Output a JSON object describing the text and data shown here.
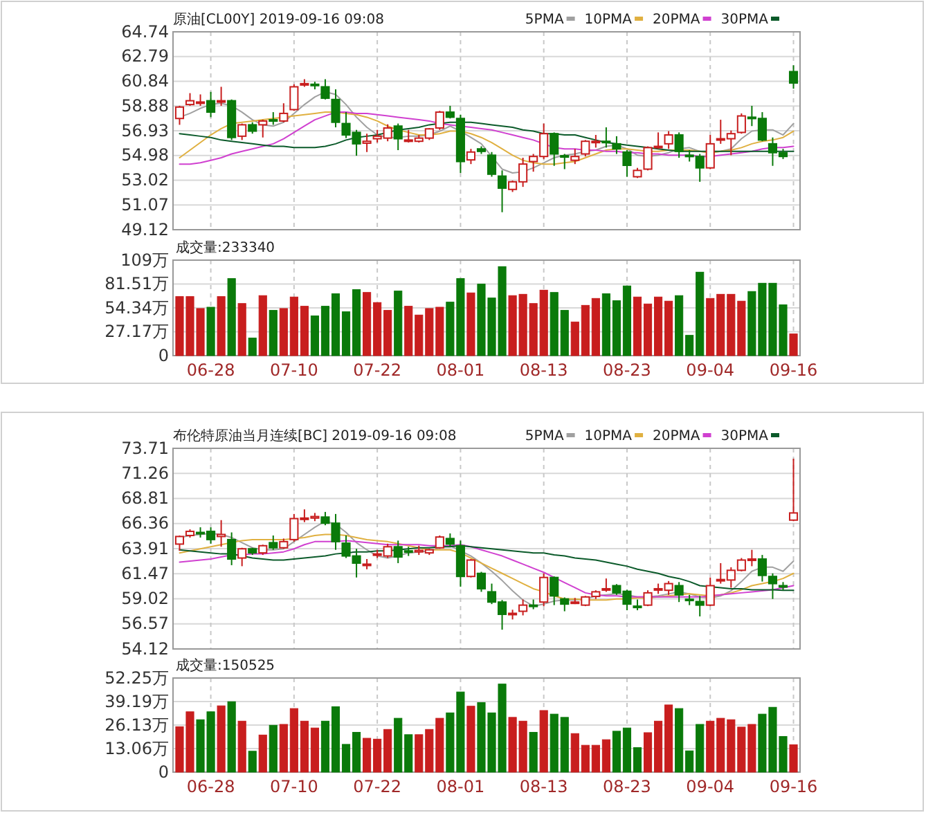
{
  "chart_data": [
    {
      "type": "candlestick",
      "title": "原油[CL00Y] 2019-09-16 09:08",
      "categories": [
        null,
        null,
        null,
        null,
        null,
        null,
        null,
        null,
        null,
        null,
        null,
        null,
        null,
        null,
        null,
        null,
        null,
        null,
        null,
        null,
        null,
        null,
        null,
        null,
        null,
        null,
        null,
        null,
        null,
        null,
        null,
        null,
        null,
        null,
        null,
        null,
        null,
        null,
        null,
        null,
        null,
        null,
        null,
        null,
        null,
        null,
        null,
        null,
        null,
        null,
        null,
        null,
        null,
        null,
        null,
        null,
        null,
        null,
        null,
        null
      ],
      "ohlc": [
        [
          57.9,
          58.9,
          57.4,
          58.8
        ],
        [
          59.0,
          59.9,
          58.9,
          59.3
        ],
        [
          59.1,
          59.8,
          58.9,
          59.2
        ],
        [
          59.3,
          60.0,
          58.0,
          58.4
        ],
        [
          59.2,
          60.4,
          58.9,
          59.3
        ],
        [
          59.3,
          59.4,
          56.2,
          56.4
        ],
        [
          56.5,
          57.5,
          56.2,
          57.4
        ],
        [
          57.4,
          57.6,
          56.7,
          56.9
        ],
        [
          57.4,
          57.8,
          56.4,
          57.7
        ],
        [
          57.8,
          58.4,
          57.4,
          57.7
        ],
        [
          57.7,
          59.1,
          57.6,
          58.3
        ],
        [
          58.6,
          60.6,
          58.5,
          60.4
        ],
        [
          60.55,
          61.0,
          60.4,
          60.65
        ],
        [
          60.6,
          60.8,
          60.2,
          60.5
        ],
        [
          60.4,
          61.0,
          59.4,
          59.5
        ],
        [
          59.4,
          60.2,
          57.2,
          57.6
        ],
        [
          57.5,
          58.4,
          56.35,
          56.6
        ],
        [
          56.8,
          57.0,
          54.96,
          55.9
        ],
        [
          55.95,
          56.7,
          55.25,
          56.1
        ],
        [
          56.3,
          57.0,
          56.0,
          56.5
        ],
        [
          56.35,
          57.44,
          56.1,
          57.15
        ],
        [
          57.3,
          57.5,
          55.4,
          56.3
        ],
        [
          56.1,
          57.0,
          56.0,
          56.2
        ],
        [
          56.1,
          56.6,
          56.0,
          56.35
        ],
        [
          56.35,
          57.15,
          56.2,
          57.08
        ],
        [
          57.15,
          58.5,
          57.0,
          58.4
        ],
        [
          58.4,
          58.9,
          57.9,
          58.0
        ],
        [
          57.9,
          58.2,
          53.6,
          54.5
        ],
        [
          54.63,
          55.5,
          54.3,
          55.25
        ],
        [
          55.5,
          55.7,
          55.1,
          55.3
        ],
        [
          55.0,
          55.25,
          53.3,
          53.5
        ],
        [
          53.35,
          53.8,
          50.5,
          52.4
        ],
        [
          52.3,
          53.0,
          52.1,
          52.9
        ],
        [
          52.9,
          54.8,
          52.5,
          54.3
        ],
        [
          54.5,
          55.1,
          53.7,
          54.9
        ],
        [
          54.9,
          57.5,
          54.7,
          56.7
        ],
        [
          56.7,
          56.8,
          54.16,
          55.1
        ],
        [
          54.96,
          55.1,
          53.9,
          54.85
        ],
        [
          54.6,
          55.5,
          54.3,
          54.9
        ],
        [
          55.1,
          56.2,
          54.9,
          56.1
        ],
        [
          56.0,
          56.6,
          55.6,
          56.1
        ],
        [
          56.1,
          57.2,
          55.6,
          56.0
        ],
        [
          55.9,
          56.5,
          55.1,
          55.5
        ],
        [
          55.25,
          55.4,
          53.3,
          54.2
        ],
        [
          53.3,
          54.0,
          53.2,
          53.8
        ],
        [
          53.9,
          55.7,
          53.8,
          55.6
        ],
        [
          55.6,
          56.8,
          55.5,
          55.7
        ],
        [
          55.9,
          56.9,
          55.5,
          56.6
        ],
        [
          56.6,
          56.8,
          54.8,
          55.3
        ],
        [
          55.0,
          55.4,
          54.5,
          54.95
        ],
        [
          54.9,
          55.1,
          52.9,
          54.0
        ],
        [
          54.0,
          56.6,
          53.9,
          55.9
        ],
        [
          56.2,
          57.8,
          55.9,
          56.3
        ],
        [
          56.3,
          56.95,
          55.0,
          56.7
        ],
        [
          56.8,
          58.3,
          56.7,
          58.1
        ],
        [
          58.0,
          58.9,
          57.3,
          57.95
        ],
        [
          57.9,
          58.4,
          56.1,
          56.2
        ],
        [
          55.9,
          56.4,
          54.16,
          55.2
        ],
        [
          55.2,
          55.5,
          54.7,
          54.9
        ],
        [
          61.6,
          62.1,
          60.25,
          60.7
        ]
      ],
      "series": [
        {
          "type": "line",
          "name": "5PMA",
          "color": "#a0a0a0",
          "values": [
            58.0,
            58.3,
            58.7,
            59.0,
            59.1,
            58.9,
            58.4,
            57.8,
            57.4,
            57.3,
            57.6,
            58.3,
            59.0,
            59.6,
            60.0,
            59.8,
            59.0,
            58.0,
            57.2,
            56.6,
            56.4,
            56.4,
            56.5,
            56.5,
            56.6,
            56.9,
            57.3,
            56.9,
            56.4,
            55.9,
            54.9,
            53.9,
            53.6,
            53.7,
            54.0,
            54.4,
            54.8,
            55.0,
            55.1,
            55.3,
            55.4,
            55.7,
            55.8,
            55.5,
            55.0,
            54.9,
            55.0,
            55.2,
            55.5,
            55.6,
            55.3,
            55.2,
            55.3,
            55.5,
            56.3,
            56.9,
            57.0,
            57.0,
            56.6,
            57.5
          ]
        },
        {
          "type": "line",
          "name": "10PMA",
          "color": "#e0b040",
          "values": [
            54.8,
            55.4,
            56.0,
            56.6,
            57.1,
            57.5,
            57.6,
            57.7,
            57.8,
            57.9,
            58.0,
            58.1,
            58.2,
            58.3,
            58.4,
            58.4,
            58.3,
            58.2,
            58.0,
            57.7,
            57.3,
            57.0,
            56.8,
            56.6,
            56.6,
            56.7,
            56.9,
            56.9,
            56.7,
            56.4,
            56.0,
            55.5,
            55.0,
            54.6,
            54.4,
            54.3,
            54.3,
            54.4,
            54.5,
            54.8,
            55.1,
            55.4,
            55.5,
            55.5,
            55.4,
            55.3,
            55.3,
            55.4,
            55.4,
            55.4,
            55.3,
            55.2,
            55.3,
            55.4,
            55.6,
            55.9,
            56.1,
            56.2,
            56.4,
            56.9
          ]
        },
        {
          "type": "line",
          "name": "20PMA",
          "color": "#d040d0",
          "values": [
            54.3,
            54.3,
            54.4,
            54.6,
            54.8,
            55.1,
            55.3,
            55.5,
            55.7,
            55.9,
            56.3,
            56.8,
            57.3,
            57.8,
            58.1,
            58.4,
            58.4,
            58.3,
            58.3,
            58.2,
            58.1,
            58.0,
            57.9,
            57.8,
            57.7,
            57.5,
            57.4,
            57.3,
            57.2,
            57.1,
            57.0,
            56.8,
            56.6,
            56.4,
            56.2,
            55.9,
            55.6,
            55.5,
            55.5,
            55.4,
            55.4,
            55.3,
            55.3,
            55.2,
            55.2,
            55.1,
            55.1,
            55.0,
            55.0,
            55.0,
            54.9,
            54.9,
            55.0,
            55.1,
            55.2,
            55.3,
            55.5,
            55.6,
            55.6,
            55.7
          ]
        },
        {
          "type": "line",
          "name": "30PMA",
          "color": "#0b5a2a",
          "values": [
            56.7,
            56.6,
            56.5,
            56.4,
            56.2,
            56.1,
            56.0,
            55.9,
            55.8,
            55.7,
            55.7,
            55.6,
            55.6,
            55.6,
            55.7,
            55.9,
            56.2,
            56.4,
            56.5,
            56.6,
            56.8,
            57.0,
            57.1,
            57.2,
            57.4,
            57.5,
            57.6,
            57.6,
            57.6,
            57.5,
            57.4,
            57.3,
            57.2,
            57.0,
            56.9,
            56.7,
            56.7,
            56.6,
            56.6,
            56.4,
            56.2,
            56.0,
            55.9,
            55.8,
            55.7,
            55.6,
            55.5,
            55.4,
            55.3,
            55.3,
            55.3,
            55.3,
            55.3,
            55.3,
            55.3,
            55.3,
            55.3,
            55.3,
            55.3,
            55.3
          ]
        }
      ],
      "ylim": [
        49.12,
        64.74
      ],
      "yticks": [
        49.12,
        51.07,
        53.02,
        54.98,
        56.93,
        58.88,
        60.84,
        62.79,
        64.74
      ],
      "grid": true,
      "legend": "top right",
      "tick_labels": "y"
    },
    {
      "type": "bar",
      "title": "成交量:233340",
      "categories": [
        null,
        null,
        null,
        "06-28",
        null,
        null,
        null,
        null,
        null,
        null,
        null,
        "07-10",
        null,
        null,
        null,
        null,
        null,
        null,
        null,
        "07-22",
        null,
        null,
        null,
        null,
        null,
        null,
        null,
        "08-01",
        null,
        null,
        null,
        null,
        null,
        null,
        null,
        "08-13",
        null,
        null,
        null,
        null,
        null,
        null,
        null,
        "08-23",
        null,
        null,
        null,
        null,
        null,
        null,
        null,
        "09-04",
        null,
        null,
        null,
        null,
        null,
        null,
        null,
        "09-16"
      ],
      "values": [
        67.2,
        67.2,
        53.6,
        55.1,
        67.2,
        87.7,
        59.3,
        20.0,
        68.3,
        51.5,
        53.6,
        66.7,
        56.2,
        45.2,
        56.2,
        70.4,
        49.9,
        75.1,
        71.9,
        60.4,
        51.5,
        73.5,
        56.2,
        46.2,
        53.6,
        55.1,
        60.9,
        87.7,
        71.4,
        81.4,
        65.6,
        101.3,
        68.3,
        69.8,
        59.3,
        74.5,
        71.9,
        51.5,
        38.3,
        57.2,
        65.1,
        70.4,
        62.5,
        79.3,
        66.7,
        58.8,
        66.7,
        62.0,
        68.3,
        23.1,
        95.0,
        65.1,
        69.8,
        69.8,
        62.0,
        73.0,
        82.4,
        82.4,
        57.8,
        24.7
      ],
      "colors": [
        "#c81e1e",
        "#c81e1e",
        "#c81e1e",
        "#0a7a0a",
        "#c81e1e",
        "#0a7a0a",
        "#c81e1e",
        "#0a7a0a",
        "#c81e1e",
        "#0a7a0a",
        "#c81e1e",
        "#c81e1e",
        "#c81e1e",
        "#0a7a0a",
        "#0a7a0a",
        "#0a7a0a",
        "#0a7a0a",
        "#0a7a0a",
        "#c81e1e",
        "#c81e1e",
        "#c81e1e",
        "#0a7a0a",
        "#c81e1e",
        "#c81e1e",
        "#c81e1e",
        "#c81e1e",
        "#0a7a0a",
        "#0a7a0a",
        "#c81e1e",
        "#0a7a0a",
        "#0a7a0a",
        "#0a7a0a",
        "#c81e1e",
        "#c81e1e",
        "#c81e1e",
        "#c81e1e",
        "#0a7a0a",
        "#0a7a0a",
        "#c81e1e",
        "#c81e1e",
        "#c81e1e",
        "#0a7a0a",
        "#0a7a0a",
        "#0a7a0a",
        "#c81e1e",
        "#c81e1e",
        "#c81e1e",
        "#c81e1e",
        "#0a7a0a",
        "#0a7a0a",
        "#0a7a0a",
        "#c81e1e",
        "#c81e1e",
        "#c81e1e",
        "#c81e1e",
        "#0a7a0a",
        "#0a7a0a",
        "#0a7a0a",
        "#0a7a0a",
        "#c81e1e"
      ],
      "ylim": [
        0,
        108.68
      ],
      "yticks": [
        0,
        {
          "value": 27.17,
          "label": "27.17万"
        },
        {
          "value": 54.34,
          "label": "54.34万"
        },
        {
          "value": 81.51,
          "label": "81.51万"
        },
        {
          "value": 108.68,
          "label": "109万"
        }
      ],
      "grid": true
    },
    {
      "type": "candlestick",
      "title": "布伦特原油当月连续[BC] 2019-09-16 09:08",
      "categories": [
        null,
        null,
        null,
        null,
        null,
        null,
        null,
        null,
        null,
        null,
        null,
        null,
        null,
        null,
        null,
        null,
        null,
        null,
        null,
        null,
        null,
        null,
        null,
        null,
        null,
        null,
        null,
        null,
        null,
        null,
        null,
        null,
        null,
        null,
        null,
        null,
        null,
        null,
        null,
        null,
        null,
        null,
        null,
        null,
        null,
        null,
        null,
        null,
        null,
        null,
        null,
        null,
        null,
        null,
        null,
        null,
        null,
        null,
        null,
        null
      ],
      "ohlc": [
        [
          64.36,
          65.2,
          63.7,
          65.1
        ],
        [
          65.2,
          65.8,
          65.0,
          65.6
        ],
        [
          65.5,
          66.0,
          65.0,
          65.4
        ],
        [
          65.6,
          66.0,
          64.4,
          64.8
        ],
        [
          65.1,
          66.7,
          64.1,
          65.3
        ],
        [
          64.8,
          65.5,
          62.3,
          62.9
        ],
        [
          63.0,
          64.0,
          62.2,
          63.9
        ],
        [
          63.9,
          64.0,
          63.3,
          63.5
        ],
        [
          63.5,
          64.3,
          63.3,
          64.2
        ],
        [
          64.5,
          65.2,
          63.8,
          64.0
        ],
        [
          64.0,
          64.9,
          63.9,
          64.6
        ],
        [
          64.8,
          67.3,
          64.6,
          66.85
        ],
        [
          66.8,
          67.75,
          66.5,
          66.9
        ],
        [
          66.9,
          67.4,
          66.6,
          67.05
        ],
        [
          67.0,
          67.5,
          66.2,
          66.4
        ],
        [
          66.4,
          67.3,
          63.8,
          64.6
        ],
        [
          64.45,
          65.2,
          63.0,
          63.2
        ],
        [
          63.2,
          63.9,
          61.1,
          62.5
        ],
        [
          62.3,
          62.9,
          61.9,
          62.4
        ],
        [
          63.3,
          63.8,
          63.0,
          63.4
        ],
        [
          63.2,
          64.4,
          63.0,
          64.1
        ],
        [
          64.1,
          64.7,
          62.5,
          63.1
        ],
        [
          63.7,
          64.1,
          63.2,
          63.6
        ],
        [
          63.6,
          64.2,
          63.3,
          63.75
        ],
        [
          63.5,
          63.9,
          63.3,
          63.8
        ],
        [
          64.0,
          65.2,
          63.9,
          65.05
        ],
        [
          64.9,
          65.4,
          64.1,
          64.36
        ],
        [
          64.2,
          64.7,
          60.2,
          61.2
        ],
        [
          61.2,
          62.9,
          61.1,
          62.8
        ],
        [
          61.5,
          61.65,
          59.7,
          60.0
        ],
        [
          59.7,
          60.5,
          58.5,
          58.7
        ],
        [
          58.7,
          58.9,
          56.0,
          57.5
        ],
        [
          57.5,
          57.95,
          57.0,
          57.6
        ],
        [
          57.8,
          58.95,
          57.4,
          58.4
        ],
        [
          58.4,
          58.95,
          58.0,
          58.3
        ],
        [
          58.7,
          61.5,
          58.3,
          61.1
        ],
        [
          61.1,
          61.2,
          58.4,
          59.3
        ],
        [
          59.0,
          59.15,
          57.8,
          58.5
        ],
        [
          58.6,
          59.1,
          58.5,
          58.7
        ],
        [
          58.4,
          59.3,
          58.3,
          59.2
        ],
        [
          59.25,
          59.85,
          59.0,
          59.7
        ],
        [
          59.9,
          61.0,
          59.7,
          60.0
        ],
        [
          60.3,
          60.45,
          59.4,
          59.6
        ],
        [
          59.75,
          59.9,
          57.9,
          58.5
        ],
        [
          58.3,
          58.95,
          57.9,
          58.2
        ],
        [
          58.4,
          59.85,
          58.3,
          59.6
        ],
        [
          59.9,
          60.5,
          59.5,
          60.0
        ],
        [
          59.85,
          60.75,
          59.4,
          60.5
        ],
        [
          60.3,
          60.65,
          58.7,
          59.4
        ],
        [
          58.98,
          59.4,
          58.4,
          58.94
        ],
        [
          58.75,
          59.3,
          57.3,
          58.4
        ],
        [
          58.4,
          61.1,
          58.3,
          60.3
        ],
        [
          60.85,
          62.5,
          60.5,
          60.9
        ],
        [
          60.85,
          62.1,
          60.1,
          61.8
        ],
        [
          61.8,
          63.0,
          61.7,
          62.8
        ],
        [
          62.8,
          63.8,
          62.2,
          62.9
        ],
        [
          62.9,
          63.3,
          60.7,
          61.3
        ],
        [
          61.2,
          61.5,
          59.0,
          60.5
        ],
        [
          60.3,
          60.65,
          59.85,
          60.2
        ],
        [
          66.7,
          72.7,
          66.6,
          67.4
        ]
      ],
      "series": [
        {
          "type": "line",
          "name": "5PMA",
          "color": "#a0a0a0",
          "values": [
            65.0,
            65.2,
            65.3,
            65.4,
            65.3,
            65.0,
            64.5,
            64.0,
            63.8,
            63.8,
            63.9,
            64.6,
            65.3,
            66.0,
            66.6,
            66.3,
            65.5,
            64.5,
            63.8,
            63.2,
            63.0,
            63.2,
            63.5,
            63.6,
            63.7,
            64.0,
            64.2,
            63.7,
            63.2,
            62.5,
            61.7,
            60.8,
            59.8,
            58.9,
            58.3,
            58.5,
            58.8,
            58.9,
            58.9,
            59.0,
            59.3,
            59.4,
            59.5,
            59.4,
            59.2,
            59.2,
            59.3,
            59.5,
            59.7,
            59.5,
            59.2,
            59.1,
            59.3,
            59.8,
            60.7,
            61.7,
            62.1,
            62.1,
            61.7,
            62.7
          ]
        },
        {
          "type": "line",
          "name": "10PMA",
          "color": "#e0b040",
          "values": [
            63.5,
            63.7,
            63.9,
            64.1,
            64.3,
            64.5,
            64.7,
            64.8,
            64.8,
            64.8,
            64.8,
            64.9,
            65.0,
            65.2,
            65.3,
            65.3,
            65.2,
            65.0,
            64.8,
            64.7,
            64.6,
            64.4,
            64.2,
            64.0,
            63.8,
            63.8,
            63.8,
            63.5,
            63.0,
            62.5,
            62.0,
            61.5,
            61.0,
            60.5,
            60.0,
            59.7,
            59.3,
            59.0,
            59.0,
            58.9,
            58.9,
            58.9,
            59.0,
            59.0,
            59.1,
            59.1,
            59.2,
            59.3,
            59.4,
            59.5,
            59.4,
            59.3,
            59.4,
            59.6,
            59.9,
            60.3,
            60.5,
            60.7,
            61.0,
            61.5
          ]
        },
        {
          "type": "line",
          "name": "20PMA",
          "color": "#d040d0",
          "values": [
            62.6,
            62.7,
            62.8,
            62.9,
            63.1,
            63.3,
            63.3,
            63.4,
            63.4,
            63.5,
            63.6,
            63.9,
            64.3,
            64.6,
            64.6,
            64.6,
            64.7,
            64.6,
            64.5,
            64.4,
            64.3,
            64.3,
            64.3,
            64.3,
            64.2,
            64.2,
            64.2,
            64.3,
            64.1,
            63.8,
            63.5,
            63.2,
            62.8,
            62.4,
            62.0,
            61.6,
            61.1,
            60.6,
            60.1,
            59.6,
            59.4,
            59.3,
            59.3,
            59.2,
            59.2,
            59.2,
            59.2,
            59.2,
            59.2,
            59.2,
            59.2,
            59.3,
            59.4,
            59.5,
            59.6,
            59.7,
            59.8,
            59.9,
            60.1,
            60.3
          ]
        },
        {
          "type": "line",
          "name": "30PMA",
          "color": "#0b5a2a",
          "values": [
            63.8,
            63.7,
            63.6,
            63.5,
            63.4,
            63.4,
            63.2,
            63.0,
            62.9,
            62.8,
            62.8,
            62.9,
            63.0,
            63.1,
            63.2,
            63.4,
            63.5,
            63.6,
            63.6,
            63.7,
            63.7,
            63.8,
            63.9,
            64.0,
            64.0,
            64.1,
            64.1,
            64.2,
            64.1,
            64.0,
            63.9,
            63.8,
            63.7,
            63.6,
            63.5,
            63.5,
            63.3,
            63.2,
            63.0,
            62.9,
            62.8,
            62.6,
            62.4,
            62.2,
            61.9,
            61.7,
            61.5,
            61.2,
            61.0,
            60.7,
            60.3,
            60.2,
            60.1,
            60.0,
            60.0,
            59.9,
            59.9,
            59.9,
            59.85,
            59.85
          ]
        }
      ],
      "ylim": [
        54.12,
        73.71
      ],
      "yticks": [
        54.12,
        56.57,
        59.02,
        61.47,
        63.91,
        66.36,
        68.81,
        71.26,
        73.71
      ],
      "grid": true,
      "legend": "top right",
      "tick_labels": "y"
    },
    {
      "type": "bar",
      "title": "成交量:150525",
      "categories": [
        null,
        null,
        null,
        "06-28",
        null,
        null,
        null,
        null,
        null,
        null,
        null,
        "07-10",
        null,
        null,
        null,
        null,
        null,
        null,
        null,
        "07-22",
        null,
        null,
        null,
        null,
        null,
        null,
        null,
        "08-01",
        null,
        null,
        null,
        null,
        null,
        null,
        null,
        "08-13",
        null,
        null,
        null,
        null,
        null,
        null,
        null,
        "08-23",
        null,
        null,
        null,
        null,
        null,
        null,
        null,
        "09-04",
        null,
        null,
        null,
        null,
        null,
        null,
        null,
        "09-16"
      ],
      "values": [
        25.2,
        33.5,
        29.1,
        33.5,
        36.8,
        39.1,
        28.3,
        11.6,
        20.6,
        26.0,
        26.5,
        35.3,
        28.3,
        24.5,
        28.3,
        36.3,
        15.4,
        22.1,
        18.8,
        18.3,
        23.7,
        29.9,
        20.8,
        20.8,
        23.7,
        29.9,
        32.9,
        44.5,
        36.6,
        38.6,
        32.9,
        48.9,
        30.4,
        28.3,
        22.1,
        34.2,
        32.2,
        30.4,
        21.4,
        14.9,
        14.9,
        18.0,
        22.7,
        24.5,
        13.6,
        21.9,
        28.3,
        37.3,
        35.3,
        11.8,
        26.5,
        28.3,
        29.9,
        29.1,
        25.0,
        26.5,
        32.2,
        36.0,
        19.8,
        15.2
      ],
      "colors": [
        "#c81e1e",
        "#c81e1e",
        "#0a7a0a",
        "#0a7a0a",
        "#c81e1e",
        "#0a7a0a",
        "#c81e1e",
        "#0a7a0a",
        "#c81e1e",
        "#0a7a0a",
        "#c81e1e",
        "#c81e1e",
        "#c81e1e",
        "#c81e1e",
        "#0a7a0a",
        "#0a7a0a",
        "#0a7a0a",
        "#0a7a0a",
        "#c81e1e",
        "#c81e1e",
        "#c81e1e",
        "#0a7a0a",
        "#0a7a0a",
        "#c81e1e",
        "#c81e1e",
        "#c81e1e",
        "#0a7a0a",
        "#0a7a0a",
        "#c81e1e",
        "#0a7a0a",
        "#0a7a0a",
        "#0a7a0a",
        "#c81e1e",
        "#c81e1e",
        "#0a7a0a",
        "#c81e1e",
        "#0a7a0a",
        "#0a7a0a",
        "#c81e1e",
        "#c81e1e",
        "#c81e1e",
        "#c81e1e",
        "#0a7a0a",
        "#0a7a0a",
        "#0a7a0a",
        "#c81e1e",
        "#c81e1e",
        "#c81e1e",
        "#0a7a0a",
        "#0a7a0a",
        "#0a7a0a",
        "#c81e1e",
        "#c81e1e",
        "#c81e1e",
        "#c81e1e",
        "#c81e1e",
        "#0a7a0a",
        "#0a7a0a",
        "#0a7a0a",
        "#c81e1e"
      ],
      "ylim": [
        0,
        52.25
      ],
      "yticks": [
        0,
        {
          "value": 13.06,
          "label": "13.06万"
        },
        {
          "value": 26.13,
          "label": "26.13万"
        },
        {
          "value": 39.19,
          "label": "39.19万"
        },
        {
          "value": 52.25,
          "label": "52.25万"
        }
      ],
      "grid": true
    }
  ]
}
